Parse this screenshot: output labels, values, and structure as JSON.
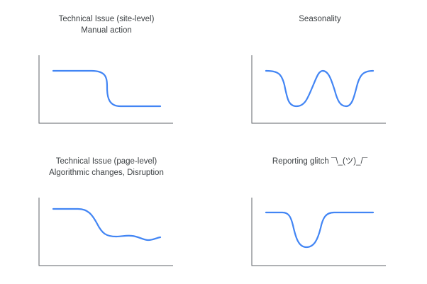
{
  "colors": {
    "trend_line": "#4285f4",
    "axis": "#5f6368",
    "title_text": "#3c4043"
  },
  "panels": [
    {
      "id": "technical-issue-site-level",
      "title": "Technical Issue (site-level)",
      "subtitle": "Manual action"
    },
    {
      "id": "seasonality",
      "title": "Seasonality",
      "subtitle": ""
    },
    {
      "id": "technical-issue-page-level",
      "title": "Technical Issue (page-level)",
      "subtitle": "Algorithmic changes, Disruption"
    },
    {
      "id": "reporting-glitch",
      "title": "Reporting glitch ¯\\_(ツ)_/¯",
      "subtitle": ""
    }
  ]
}
